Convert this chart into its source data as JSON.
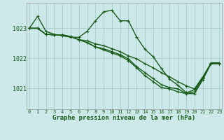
{
  "background_color": "#cce8e8",
  "grid_color": "#aacccc",
  "line_color": "#1a5c1a",
  "title": "Graphe pression niveau de la mer (hPa)",
  "title_fontsize": 6.5,
  "ylabel_fontsize": 6,
  "xlabel_fontsize": 5,
  "yticks": [
    1021,
    1022,
    1023
  ],
  "xticks": [
    0,
    1,
    2,
    3,
    4,
    5,
    6,
    7,
    8,
    9,
    10,
    11,
    12,
    13,
    14,
    15,
    16,
    17,
    18,
    19,
    20,
    21,
    22,
    23
  ],
  "ylim": [
    1020.3,
    1023.85
  ],
  "xlim": [
    -0.3,
    23.3
  ],
  "series": [
    [
      1023.0,
      1023.4,
      1022.9,
      1022.8,
      1022.75,
      1022.7,
      1022.7,
      1022.9,
      1023.25,
      1023.55,
      1023.6,
      1023.25,
      1023.25,
      1022.7,
      1022.3,
      1022.05,
      1021.65,
      1021.3,
      1021.1,
      1020.85,
      1020.95,
      1021.35,
      1021.85,
      1021.85
    ],
    [
      1023.0,
      1023.0,
      1022.8,
      1022.78,
      1022.78,
      1022.72,
      1022.62,
      1022.58,
      1022.48,
      1022.42,
      1022.32,
      1022.22,
      1022.08,
      1021.98,
      1021.82,
      1021.68,
      1021.52,
      1021.38,
      1021.22,
      1021.08,
      1020.98,
      1021.38,
      1021.82,
      1021.82
    ],
    [
      1023.0,
      1023.0,
      1022.8,
      1022.78,
      1022.78,
      1022.72,
      1022.62,
      1022.52,
      1022.38,
      1022.32,
      1022.22,
      1022.12,
      1021.98,
      1021.72,
      1021.52,
      1021.32,
      1021.12,
      1021.02,
      1020.98,
      1020.82,
      1020.88,
      1021.32,
      1021.82,
      1021.82
    ],
    [
      1023.0,
      1023.0,
      1022.8,
      1022.78,
      1022.78,
      1022.72,
      1022.62,
      1022.52,
      1022.38,
      1022.28,
      1022.18,
      1022.08,
      1021.92,
      1021.68,
      1021.42,
      1021.22,
      1021.02,
      1020.98,
      1020.88,
      1020.82,
      1020.82,
      1021.28,
      1021.82,
      1021.82
    ]
  ]
}
